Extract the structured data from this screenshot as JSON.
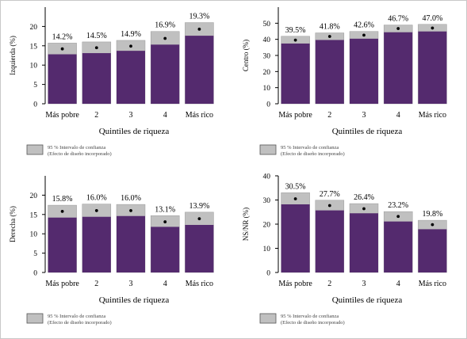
{
  "chart_data": [
    {
      "type": "bar",
      "ylabel": "Izquierda (%)",
      "xlabel": "Quintiles de riqueza",
      "categories": [
        "Más pobre",
        "2",
        "3",
        "4",
        "Más rico"
      ],
      "values": [
        14.2,
        14.5,
        14.9,
        16.9,
        19.3
      ],
      "value_labels": [
        "14.2%",
        "14.5%",
        "14.9%",
        "16.9%",
        "19.3%"
      ],
      "ci_low": [
        12.8,
        13.1,
        13.7,
        15.3,
        17.6
      ],
      "ci_high": [
        15.7,
        16.0,
        16.4,
        18.7,
        21.0
      ],
      "ylim": [
        0,
        25
      ],
      "yticks": [
        "0",
        "5",
        "10",
        "15",
        "20"
      ],
      "ytick_values": [
        0,
        5,
        10,
        15,
        20
      ],
      "legend": "95 % Intervalo de confianza",
      "legend_sub": "(Efecto de diseño incorporado)"
    },
    {
      "type": "bar",
      "ylabel": "Centro (%)",
      "xlabel": "Quintiles de riqueza",
      "categories": [
        "Más pobre",
        "2",
        "3",
        "4",
        "Más rico"
      ],
      "values": [
        39.5,
        41.8,
        42.6,
        46.7,
        47.0
      ],
      "value_labels": [
        "39.5%",
        "41.8%",
        "42.6%",
        "46.7%",
        "47.0%"
      ],
      "ci_low": [
        37.4,
        39.6,
        40.4,
        44.4,
        44.9
      ],
      "ci_high": [
        41.9,
        44.0,
        44.9,
        48.9,
        49.3
      ],
      "ylim": [
        0,
        60
      ],
      "yticks": [
        "0",
        "10",
        "20",
        "30",
        "40",
        "50"
      ],
      "ytick_values": [
        0,
        10,
        20,
        30,
        40,
        50
      ],
      "legend": "95 % Intervalo de confianza",
      "legend_sub": "(Efecto de diseño incorporado)"
    },
    {
      "type": "bar",
      "ylabel": "Derecha (%)",
      "xlabel": "Quintiles de riqueza",
      "categories": [
        "Más pobre",
        "2",
        "3",
        "4",
        "Más rico"
      ],
      "values": [
        15.8,
        16.0,
        16.0,
        13.1,
        13.9
      ],
      "value_labels": [
        "15.8%",
        "16.0%",
        "16.0%",
        "13.1%",
        "13.9%"
      ],
      "ci_low": [
        14.2,
        14.4,
        14.6,
        11.8,
        12.3
      ],
      "ci_high": [
        17.4,
        17.7,
        17.6,
        14.7,
        15.6
      ],
      "ylim": [
        0,
        25
      ],
      "yticks": [
        "0",
        "5",
        "10",
        "15",
        "20"
      ],
      "ytick_values": [
        0,
        5,
        10,
        15,
        20
      ],
      "legend": "95 % Intervalo de confianza",
      "legend_sub": "(Efecto de diseño incorporado)"
    },
    {
      "type": "bar",
      "ylabel": "NS/NR (%)",
      "xlabel": "Quintiles de riqueza",
      "categories": [
        "Más pobre",
        "2",
        "3",
        "4",
        "Más rico"
      ],
      "values": [
        30.5,
        27.7,
        26.4,
        23.2,
        19.8
      ],
      "value_labels": [
        "30.5%",
        "27.7%",
        "26.4%",
        "23.2%",
        "19.8%"
      ],
      "ci_low": [
        28.2,
        25.7,
        24.5,
        21.1,
        17.9
      ],
      "ci_high": [
        33.0,
        29.9,
        28.5,
        25.2,
        21.6
      ],
      "ylim": [
        0,
        40
      ],
      "yticks": [
        "0",
        "10",
        "20",
        "30",
        "40"
      ],
      "ytick_values": [
        0,
        10,
        20,
        30,
        40
      ],
      "legend": "95 % Intervalo de confianza",
      "legend_sub": "(Efecto de diseño incorporado)"
    }
  ],
  "colors": {
    "bar": "#542a6e",
    "ci": "#c0c0c0",
    "point": "#000000"
  }
}
